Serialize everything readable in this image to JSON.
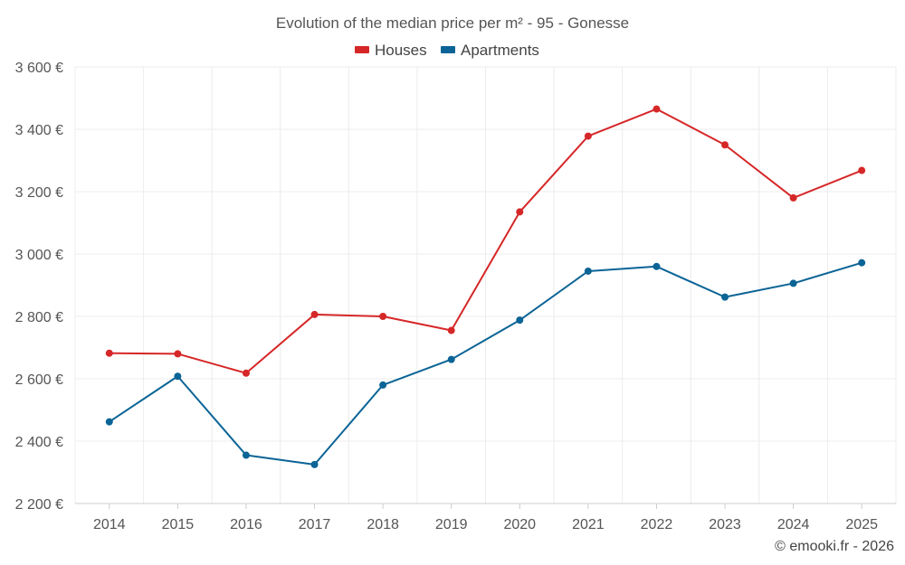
{
  "chart_data": {
    "type": "line",
    "title": "Evolution of the median price per m² - 95 - Gonesse",
    "categories": [
      "2014",
      "2015",
      "2016",
      "2017",
      "2018",
      "2019",
      "2020",
      "2021",
      "2022",
      "2023",
      "2024",
      "2025"
    ],
    "series": [
      {
        "name": "Houses",
        "color": "#d62728",
        "values": [
          2682,
          2680,
          2618,
          2806,
          2800,
          2755,
          3135,
          3378,
          3465,
          3350,
          3180,
          3268
        ]
      },
      {
        "name": "Apartments",
        "color": "#0b6496",
        "values": [
          2462,
          2608,
          2355,
          2325,
          2580,
          2662,
          2788,
          2945,
          2960,
          2862,
          2906,
          2972
        ]
      }
    ],
    "ylim": [
      2200,
      3600
    ],
    "yticks": [
      2200,
      2400,
      2600,
      2800,
      3000,
      3200,
      3400,
      3600
    ],
    "ytick_labels": [
      "2 200 €",
      "2 400 €",
      "2 600 €",
      "2 800 €",
      "3 000 €",
      "3 200 €",
      "3 400 €",
      "3 600 €"
    ],
    "grid": true,
    "legend_position": "top-center",
    "xlabel": "",
    "ylabel": ""
  },
  "credit": "© emooki.fr - 2026"
}
